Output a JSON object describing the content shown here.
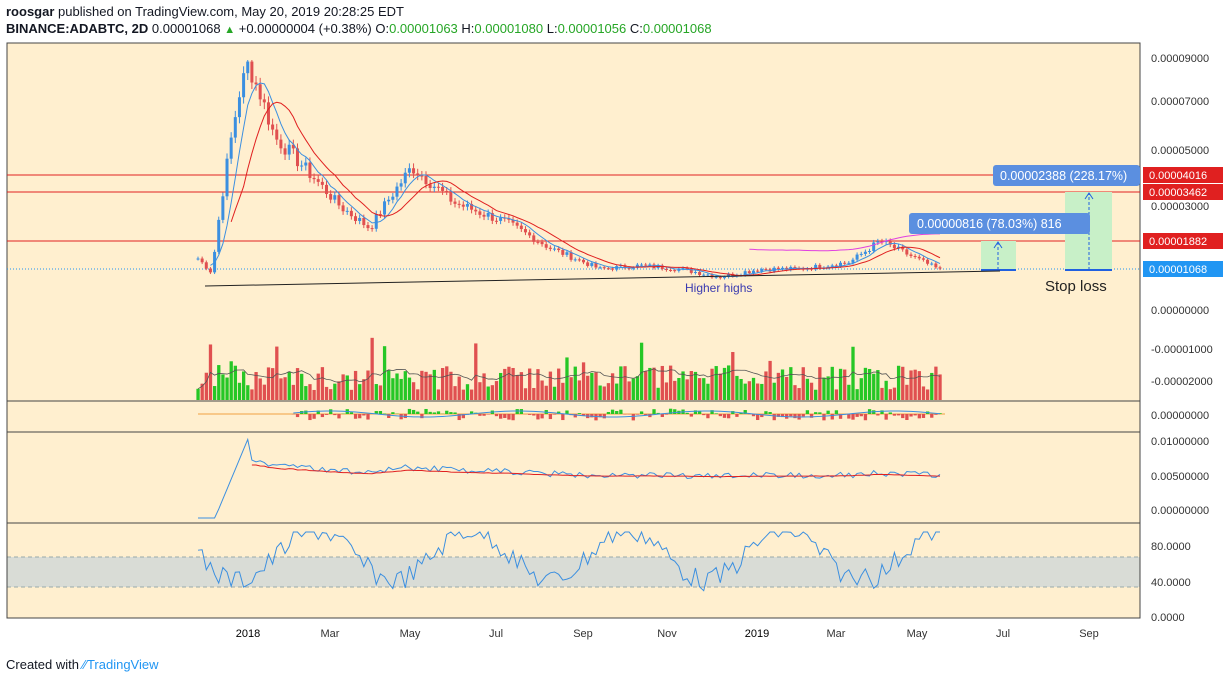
{
  "header": {
    "author": "roosgar",
    "published": "published on TradingView.com, May 20, 2019 20:28:25 EDT",
    "symbol": "BINANCE:ADABTC, 2D",
    "last": "0.00001068",
    "change": "+0.00000004 (+0.38%)",
    "o_label": "O:",
    "o": "0.00001063",
    "h_label": "H:",
    "h": "0.00001080",
    "l_label": "L:",
    "l": "0.00001056",
    "c_label": "C:",
    "c": "0.00001068"
  },
  "footer": {
    "created_with": "Created with",
    "brand": "TradingView"
  },
  "colors": {
    "background": "#ffefcf",
    "up": "#26c726",
    "down": "#e05050",
    "ma_red": "#e02020",
    "ma_blue": "#3b8fe0",
    "ma_magenta": "#e040e0",
    "level_line": "#e02020",
    "price_tag": "#2196f3",
    "zone_green": "#c8f0c8",
    "zone_blue": "#bfe3f5"
  },
  "chart_data": {
    "type": "line",
    "title": "",
    "x_ticks": [
      "2018",
      "Mar",
      "May",
      "Jul",
      "Sep",
      "Nov",
      "2019",
      "Mar",
      "May",
      "Jul",
      "Sep"
    ],
    "price_axis_labels": [
      "0.00009000",
      "0.00007000",
      "0.00005000",
      "0.00003000"
    ],
    "horizontal_levels": [
      {
        "value": "0.00004016",
        "color": "#e02020"
      },
      {
        "value": "0.00003462",
        "color": "#e02020"
      },
      {
        "value": "0.00001882",
        "color": "#e02020"
      }
    ],
    "current_price": {
      "value": "0.00001068",
      "color": "#2196f3"
    },
    "price_series_approx": [
      {
        "t": "Dec 2017",
        "close": 1.4e-05
      },
      {
        "t": "Dec 2017",
        "close": 1e-05
      },
      {
        "t": "Jan 2018",
        "close": 7.5e-05
      },
      {
        "t": "Jan 2018",
        "close": 8.8e-05
      },
      {
        "t": "Feb 2018",
        "close": 5.5e-05
      },
      {
        "t": "Mar 2018",
        "close": 3e-05
      },
      {
        "t": "Apr 2018",
        "close": 2.3e-05
      },
      {
        "t": "May 2018",
        "close": 4.4e-05
      },
      {
        "t": "Jun 2018",
        "close": 3.1e-05
      },
      {
        "t": "Jul 2018",
        "close": 2.5e-05
      },
      {
        "t": "Aug 2018",
        "close": 1.7e-05
      },
      {
        "t": "Sep 2018",
        "close": 1.1e-05
      },
      {
        "t": "Oct 2018",
        "close": 1.2e-05
      },
      {
        "t": "Nov 2018",
        "close": 1.1e-05
      },
      {
        "t": "Dec 2018",
        "close": 9e-06
      },
      {
        "t": "Jan 2019",
        "close": 1.1e-05
      },
      {
        "t": "Feb 2019",
        "close": 1.1e-05
      },
      {
        "t": "Mar 2019",
        "close": 1.3e-05
      },
      {
        "t": "Apr 2019",
        "close": 1.9e-05
      },
      {
        "t": "May 2019",
        "close": 1.07e-05
      }
    ],
    "annotations": {
      "higher_highs": "Higher highs",
      "stop_loss": "Stop loss",
      "target1": "0.00000816 (78.03%) 816",
      "target2": "0.00002388 (228.17%)"
    },
    "volume_axis_labels": [
      "0.00000000",
      "-0.00001000",
      "-0.00002000"
    ],
    "macd_axis_labels": [
      "0.00000000"
    ],
    "atr_axis_labels": [
      "0.01000000",
      "0.00500000",
      "0.00000000"
    ],
    "rsi_axis_labels": [
      "80.0000",
      "40.0000",
      "0.0000"
    ],
    "rsi_band": [
      35,
      68
    ]
  }
}
